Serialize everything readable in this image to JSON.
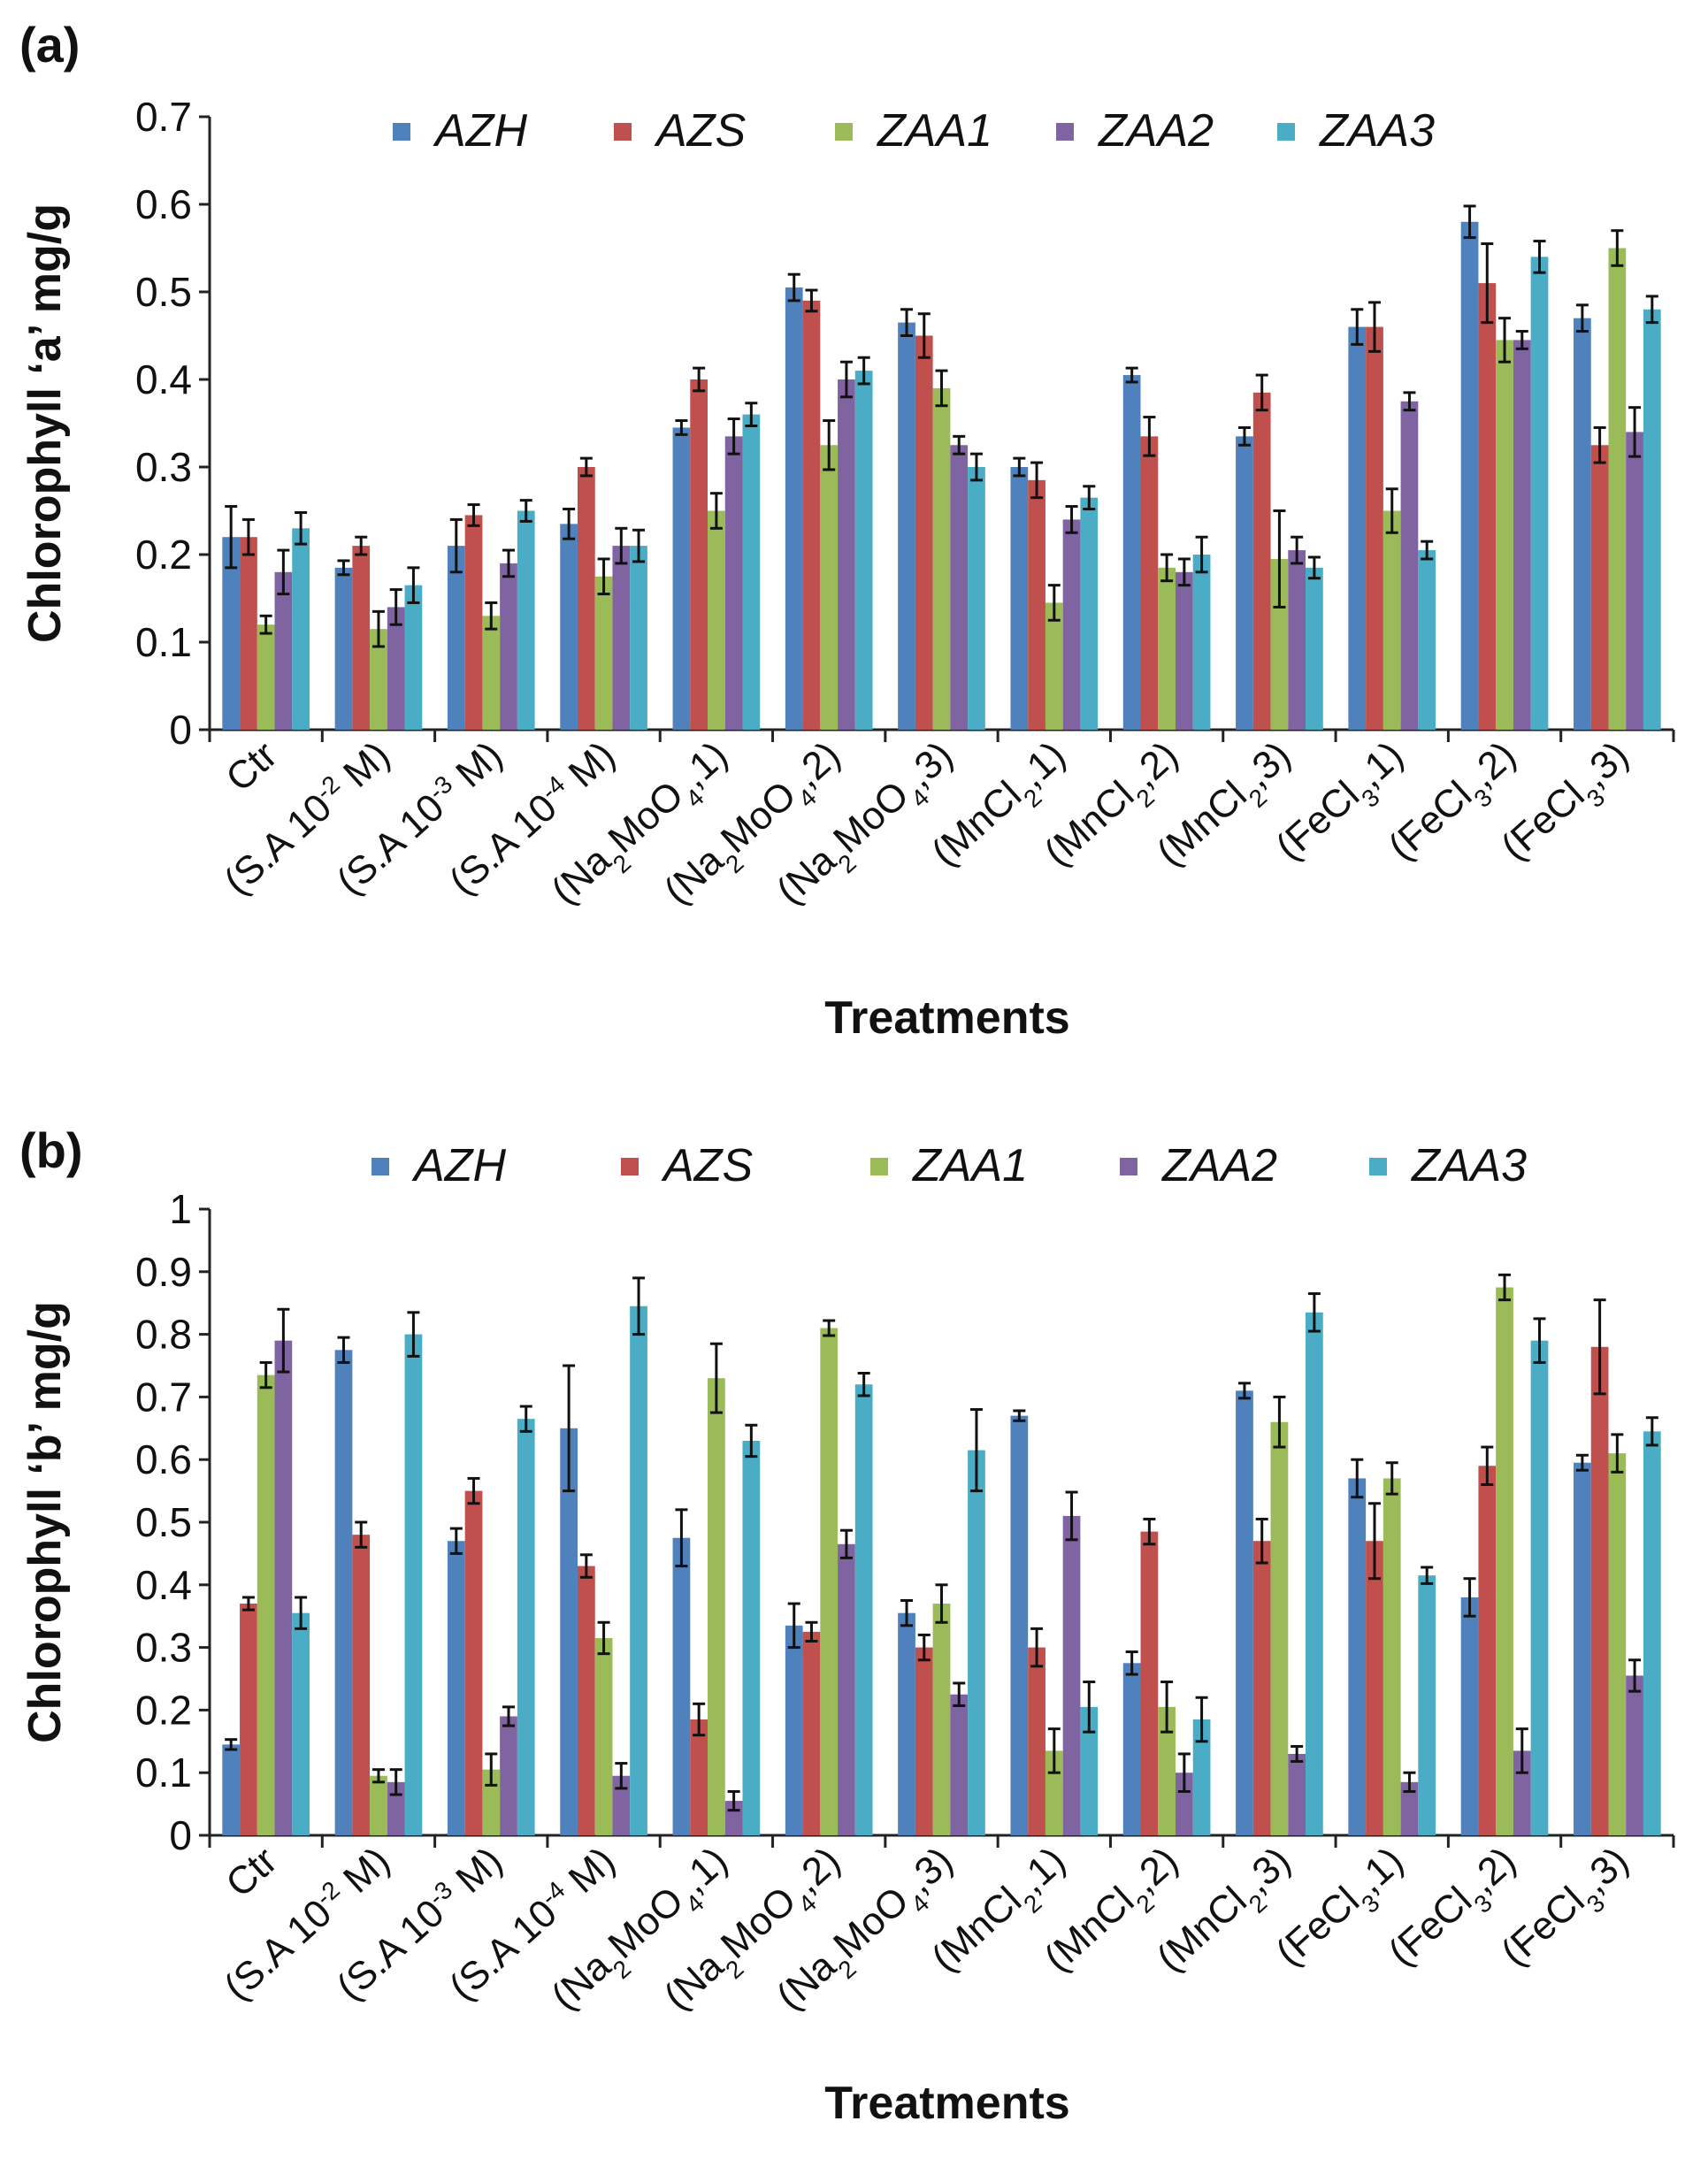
{
  "series_colors": {
    "AZH": "#4F81BD",
    "AZS": "#C0504D",
    "ZAA1": "#9BBB59",
    "ZAA2": "#8064A2",
    "ZAA3": "#4BACC6"
  },
  "categories": [
    [
      {
        "t": "Ctr"
      }
    ],
    [
      {
        "t": "(S.A 10"
      },
      {
        "t": "-2",
        "sup": true
      },
      {
        "t": " M)"
      }
    ],
    [
      {
        "t": "(S.A 10"
      },
      {
        "t": "-3",
        "sup": true
      },
      {
        "t": " M)"
      }
    ],
    [
      {
        "t": "(S.A 10"
      },
      {
        "t": "-4",
        "sup": true
      },
      {
        "t": " M)"
      }
    ],
    [
      {
        "t": "(Na"
      },
      {
        "t": "2",
        "sub": true
      },
      {
        "t": "MoO"
      },
      {
        "t": "4",
        "sub": true
      },
      {
        "t": ",1)"
      }
    ],
    [
      {
        "t": "(Na"
      },
      {
        "t": "2",
        "sub": true
      },
      {
        "t": "MoO"
      },
      {
        "t": "4",
        "sub": true
      },
      {
        "t": ",2)"
      }
    ],
    [
      {
        "t": "(Na"
      },
      {
        "t": "2",
        "sub": true
      },
      {
        "t": "MoO"
      },
      {
        "t": "4",
        "sub": true
      },
      {
        "t": ",3)"
      }
    ],
    [
      {
        "t": "(MnCl"
      },
      {
        "t": "2",
        "sub": true
      },
      {
        "t": ",1)"
      }
    ],
    [
      {
        "t": "(MnCl"
      },
      {
        "t": "2",
        "sub": true
      },
      {
        "t": ",2)"
      }
    ],
    [
      {
        "t": "(MnCl"
      },
      {
        "t": "2",
        "sub": true
      },
      {
        "t": ",3)"
      }
    ],
    [
      {
        "t": "(FeCl"
      },
      {
        "t": "3",
        "sub": true
      },
      {
        "t": ",1)"
      }
    ],
    [
      {
        "t": "(FeCl"
      },
      {
        "t": "3",
        "sub": true
      },
      {
        "t": ",2)"
      }
    ],
    [
      {
        "t": "(FeCl"
      },
      {
        "t": "3",
        "sub": true
      },
      {
        "t": ",3)"
      }
    ]
  ],
  "chart_data": [
    {
      "type": "bar",
      "panel": "(a)",
      "ylabel": "Chlorophyll ‘a’ mg/g",
      "xlabel": "Treatments",
      "ylim": [
        0,
        0.7
      ],
      "yticks": [
        "0",
        "0.1",
        "0.2",
        "0.3",
        "0.4",
        "0.5",
        "0.6",
        "0.7"
      ],
      "legend": "top",
      "series": [
        {
          "name": "AZH",
          "values": [
            0.22,
            0.185,
            0.21,
            0.235,
            0.345,
            0.505,
            0.465,
            0.3,
            0.405,
            0.335,
            0.46,
            0.58,
            0.47
          ],
          "errors": [
            0.035,
            0.008,
            0.03,
            0.017,
            0.008,
            0.015,
            0.015,
            0.01,
            0.008,
            0.01,
            0.02,
            0.018,
            0.015
          ]
        },
        {
          "name": "AZS",
          "values": [
            0.22,
            0.21,
            0.245,
            0.3,
            0.4,
            0.49,
            0.45,
            0.285,
            0.335,
            0.385,
            0.46,
            0.51,
            0.325
          ],
          "errors": [
            0.02,
            0.01,
            0.012,
            0.01,
            0.013,
            0.012,
            0.025,
            0.02,
            0.022,
            0.02,
            0.028,
            0.045,
            0.02
          ]
        },
        {
          "name": "ZAA1",
          "values": [
            0.12,
            0.115,
            0.13,
            0.175,
            0.25,
            0.325,
            0.39,
            0.145,
            0.185,
            0.195,
            0.25,
            0.445,
            0.55
          ],
          "errors": [
            0.01,
            0.02,
            0.015,
            0.02,
            0.02,
            0.028,
            0.02,
            0.02,
            0.015,
            0.055,
            0.025,
            0.025,
            0.02
          ]
        },
        {
          "name": "ZAA2",
          "values": [
            0.18,
            0.14,
            0.19,
            0.21,
            0.335,
            0.4,
            0.325,
            0.24,
            0.18,
            0.205,
            0.375,
            0.445,
            0.34
          ],
          "errors": [
            0.025,
            0.02,
            0.015,
            0.02,
            0.02,
            0.02,
            0.01,
            0.015,
            0.015,
            0.015,
            0.01,
            0.01,
            0.028
          ]
        },
        {
          "name": "ZAA3",
          "values": [
            0.23,
            0.165,
            0.25,
            0.21,
            0.36,
            0.41,
            0.3,
            0.265,
            0.2,
            0.185,
            0.205,
            0.54,
            0.48
          ],
          "errors": [
            0.018,
            0.02,
            0.012,
            0.018,
            0.013,
            0.015,
            0.015,
            0.013,
            0.02,
            0.012,
            0.01,
            0.018,
            0.015
          ]
        }
      ]
    },
    {
      "type": "bar",
      "panel": "(b)",
      "ylabel": "Chlorophyll ‘b’ mg/g",
      "xlabel": "Treatments",
      "ylim": [
        0,
        1
      ],
      "yticks": [
        "0",
        "0.1",
        "0.2",
        "0.3",
        "0.4",
        "0.5",
        "0.6",
        "0.7",
        "0.8",
        "0.9",
        "1"
      ],
      "legend": "top",
      "series": [
        {
          "name": "AZH",
          "values": [
            0.145,
            0.775,
            0.47,
            0.65,
            0.475,
            0.335,
            0.355,
            0.67,
            0.275,
            0.71,
            0.57,
            0.38,
            0.595
          ],
          "errors": [
            0.008,
            0.02,
            0.02,
            0.1,
            0.045,
            0.035,
            0.02,
            0.008,
            0.018,
            0.012,
            0.03,
            0.03,
            0.012
          ]
        },
        {
          "name": "AZS",
          "values": [
            0.37,
            0.48,
            0.55,
            0.43,
            0.185,
            0.325,
            0.3,
            0.3,
            0.485,
            0.47,
            0.47,
            0.59,
            0.78
          ],
          "errors": [
            0.01,
            0.02,
            0.02,
            0.018,
            0.025,
            0.015,
            0.02,
            0.03,
            0.02,
            0.035,
            0.06,
            0.03,
            0.075
          ]
        },
        {
          "name": "ZAA1",
          "values": [
            0.735,
            0.095,
            0.105,
            0.315,
            0.73,
            0.81,
            0.37,
            0.135,
            0.205,
            0.66,
            0.57,
            0.875,
            0.61
          ],
          "errors": [
            0.02,
            0.01,
            0.025,
            0.025,
            0.055,
            0.012,
            0.03,
            0.035,
            0.04,
            0.04,
            0.025,
            0.02,
            0.03
          ]
        },
        {
          "name": "ZAA2",
          "values": [
            0.79,
            0.085,
            0.19,
            0.095,
            0.055,
            0.465,
            0.225,
            0.51,
            0.1,
            0.13,
            0.085,
            0.135,
            0.255
          ],
          "errors": [
            0.05,
            0.02,
            0.015,
            0.02,
            0.015,
            0.022,
            0.018,
            0.038,
            0.03,
            0.012,
            0.015,
            0.035,
            0.025
          ]
        },
        {
          "name": "ZAA3",
          "values": [
            0.355,
            0.8,
            0.665,
            0.845,
            0.63,
            0.72,
            0.615,
            0.205,
            0.185,
            0.835,
            0.415,
            0.79,
            0.645
          ],
          "errors": [
            0.025,
            0.035,
            0.02,
            0.045,
            0.025,
            0.018,
            0.065,
            0.04,
            0.035,
            0.03,
            0.013,
            0.035,
            0.022
          ]
        }
      ]
    }
  ]
}
